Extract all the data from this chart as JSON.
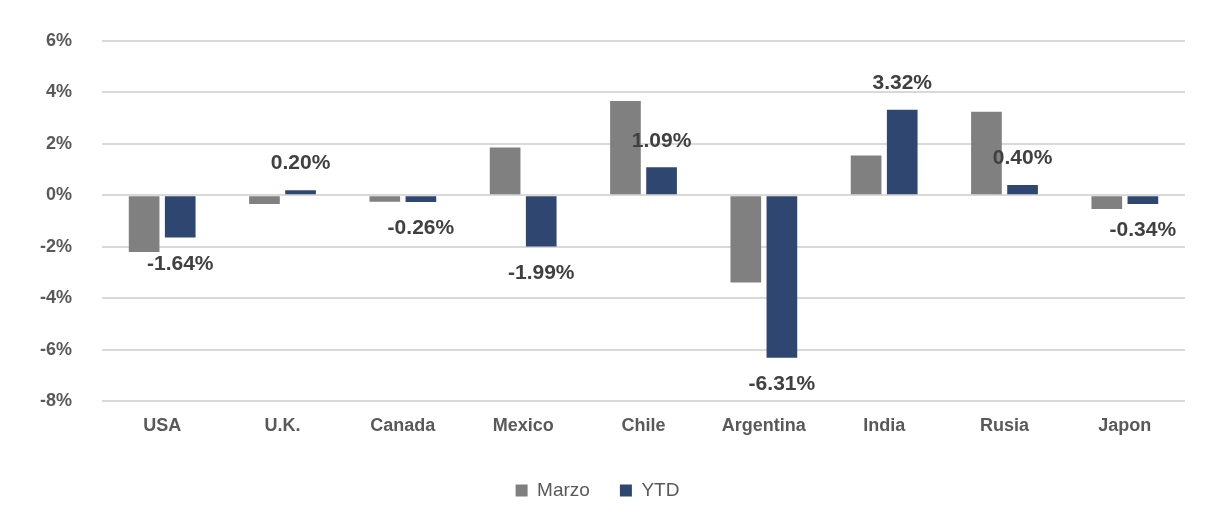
{
  "chart_data": {
    "type": "bar",
    "categories": [
      "USA",
      "U.K.",
      "Canada",
      "Mexico",
      "Chile",
      "Argentina",
      "India",
      "Rusia",
      "Japon"
    ],
    "series": [
      {
        "name": "Marzo",
        "color": "#808080",
        "values": [
          -2.2,
          -0.34,
          -0.25,
          1.86,
          3.66,
          -3.38,
          1.55,
          3.25,
          -0.53
        ]
      },
      {
        "name": "YTD",
        "color": "#2f4770",
        "values": [
          -1.64,
          0.2,
          -0.26,
          -1.99,
          1.09,
          -6.31,
          3.32,
          0.4,
          -0.34
        ],
        "value_labels": [
          "-1.64%",
          "0.20%",
          "-0.26%",
          "-1.99%",
          "1.09%",
          "-6.31%",
          "3.32%",
          "0.40%",
          "-0.34%"
        ]
      }
    ],
    "ylim": [
      -8,
      6
    ],
    "yticks": [
      {
        "value": -8,
        "label": "-8%"
      },
      {
        "value": -6,
        "label": "-6%"
      },
      {
        "value": -4,
        "label": "-4%"
      },
      {
        "value": -2,
        "label": "-2%"
      },
      {
        "value": 0,
        "label": "0%"
      },
      {
        "value": 2,
        "label": "2%"
      },
      {
        "value": 4,
        "label": "4%"
      },
      {
        "value": 6,
        "label": "6%"
      }
    ],
    "grid": "y",
    "legend": "bottom"
  }
}
